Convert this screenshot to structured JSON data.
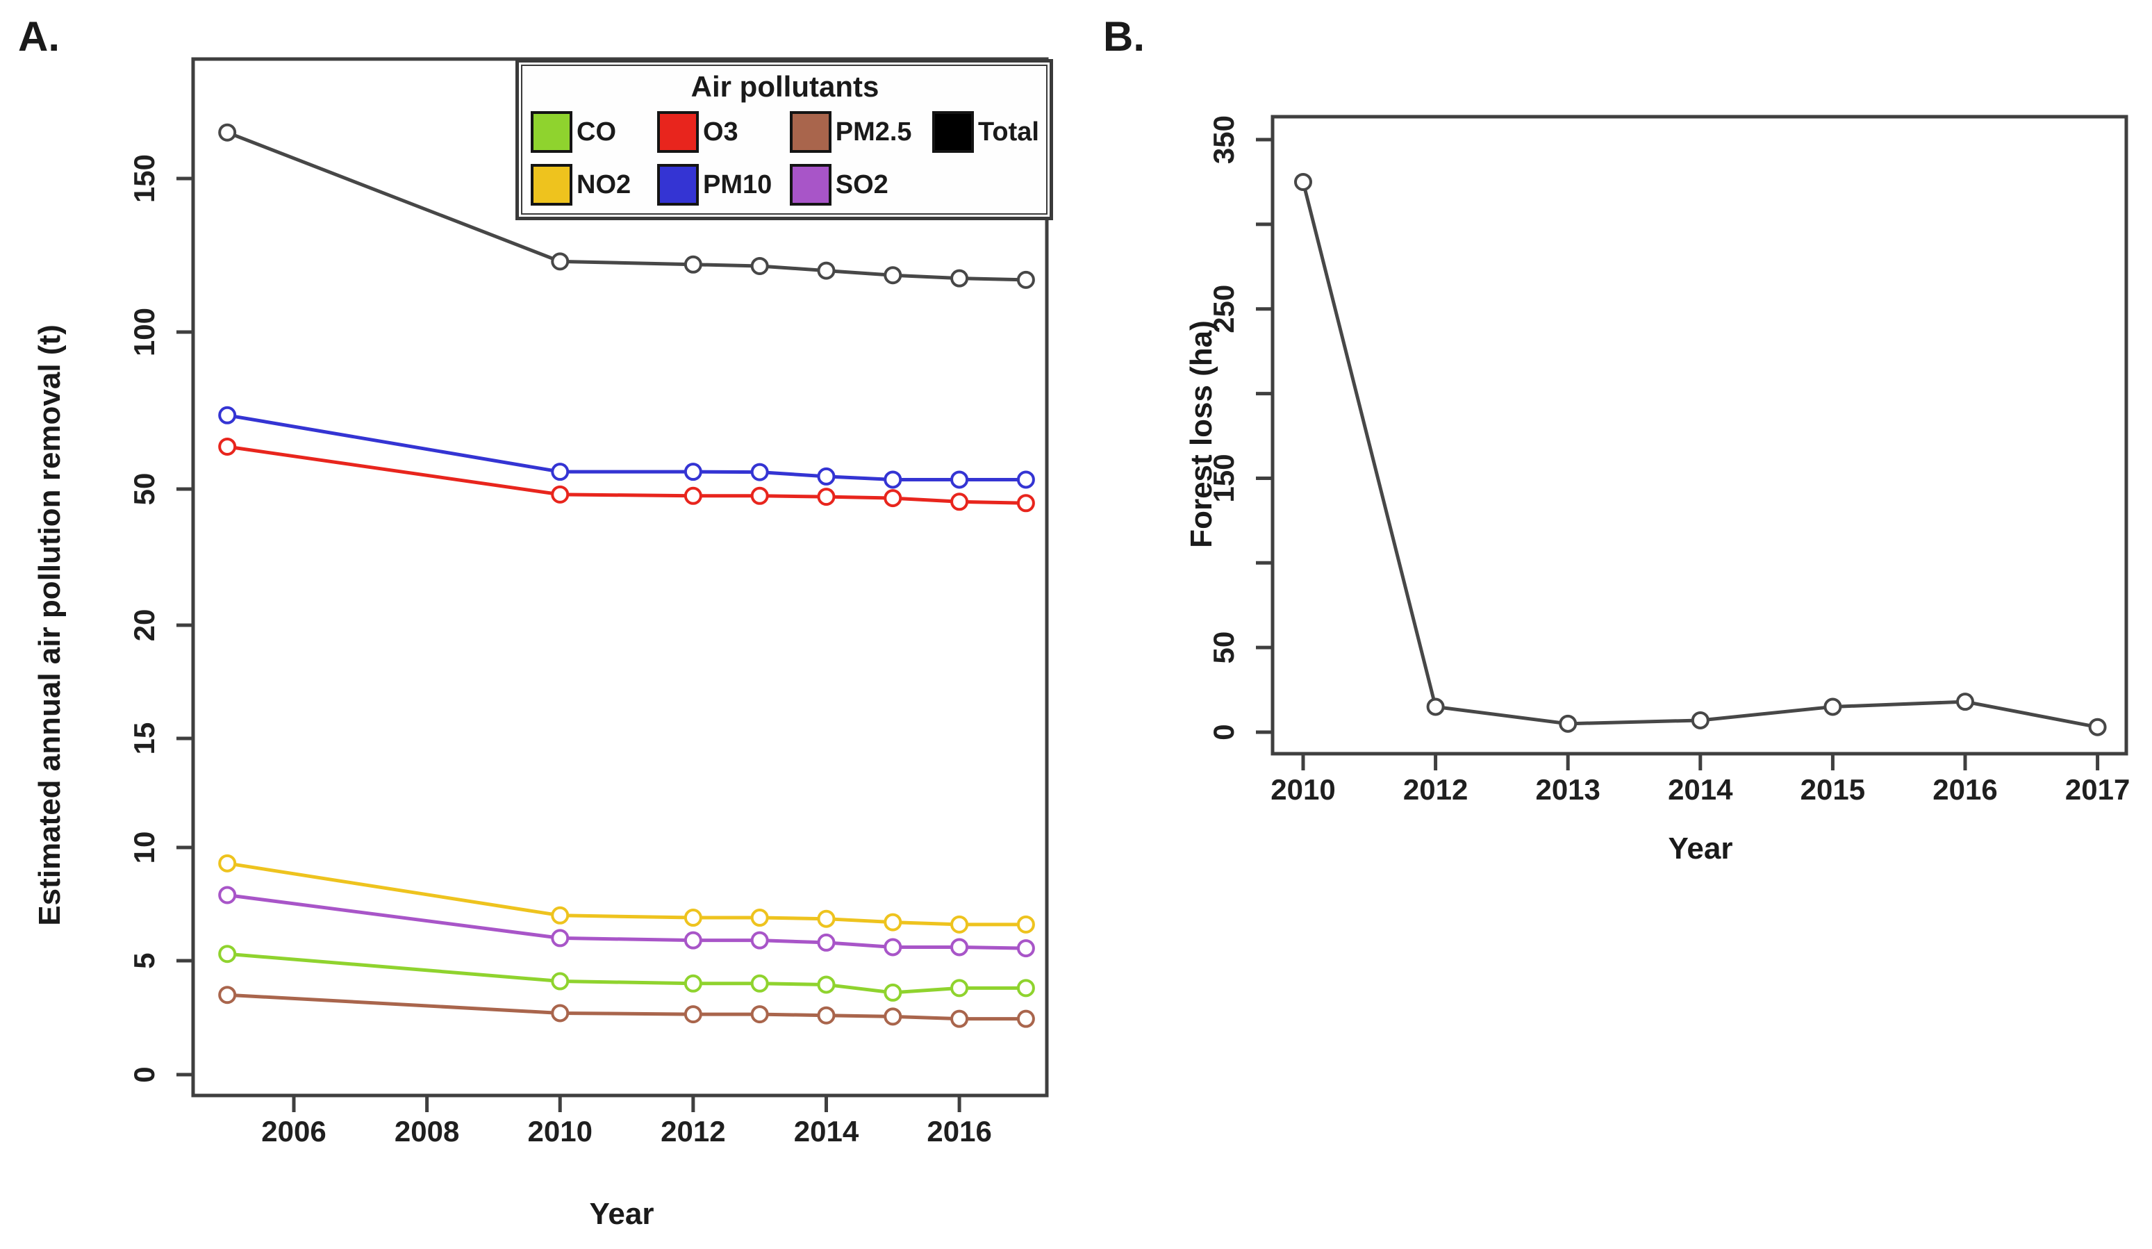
{
  "figure": {
    "panel_a": {
      "label": "A.",
      "ylabel": "Estimated annual air pollution removal (t)",
      "xlabel": "Year",
      "legend": {
        "title": "Air pollutants",
        "columns": [
          [
            "CO",
            "NO2"
          ],
          [
            "O3",
            "PM10"
          ],
          [
            "PM2.5",
            "SO2"
          ],
          [
            "Total"
          ]
        ]
      },
      "chart_data": {
        "type": "line",
        "x": [
          2005,
          2010,
          2012,
          2013,
          2014,
          2015,
          2016,
          2017
        ],
        "x_ticks": [
          2006,
          2008,
          2010,
          2012,
          2014,
          2016
        ],
        "y_ticks": [
          0,
          5,
          10,
          15,
          20,
          50,
          100,
          150
        ],
        "y_scale_note": "broken y-axis: 0-20 expanded, 20-50 compressed, 50-150 linear",
        "xlabel": "Year",
        "ylabel": "Estimated annual air pollution removal (t)",
        "series": [
          {
            "name": "CO",
            "color": "#8fd32e",
            "values": [
              5.3,
              4.1,
              4.0,
              4.0,
              3.95,
              3.6,
              3.8,
              3.8
            ]
          },
          {
            "name": "NO2",
            "color": "#eec31e",
            "values": [
              9.3,
              7.0,
              6.9,
              6.9,
              6.85,
              6.7,
              6.6,
              6.6
            ]
          },
          {
            "name": "O3",
            "color": "#e8251d",
            "values": [
              63.5,
              48.8,
              48.5,
              48.5,
              48.3,
              48.0,
              47.2,
              46.9
            ]
          },
          {
            "name": "PM10",
            "color": "#3434d3",
            "values": [
              73.5,
              55.5,
              55.5,
              55.4,
              54.0,
              53.0,
              53.0,
              53.0
            ]
          },
          {
            "name": "PM2.5",
            "color": "#a9654c",
            "values": [
              3.5,
              2.7,
              2.65,
              2.65,
              2.6,
              2.55,
              2.45,
              2.45
            ]
          },
          {
            "name": "SO2",
            "color": "#a855c8",
            "values": [
              7.9,
              6.0,
              5.9,
              5.9,
              5.8,
              5.6,
              5.6,
              5.55
            ]
          },
          {
            "name": "Total",
            "color": "#474747",
            "legend_color": "#000000",
            "values": [
              165,
              123,
              122,
              121.5,
              120,
              118.5,
              117.5,
              117
            ]
          }
        ]
      }
    },
    "panel_b": {
      "label": "B.",
      "ylabel": "Forest loss (ha)",
      "xlabel": "Year",
      "chart_data": {
        "type": "line",
        "categories": [
          2010,
          2012,
          2013,
          2014,
          2015,
          2016,
          2017
        ],
        "values": [
          325,
          15,
          5,
          7,
          15,
          18,
          3
        ],
        "line_color": "#474747",
        "y_ticks": [
          0,
          50,
          100,
          150,
          200,
          250,
          300,
          350
        ],
        "y_tick_labeled": [
          0,
          50,
          150,
          250,
          350
        ],
        "ylim": [
          0,
          363
        ],
        "xlabel": "Year",
        "ylabel": "Forest loss (ha)"
      }
    }
  }
}
